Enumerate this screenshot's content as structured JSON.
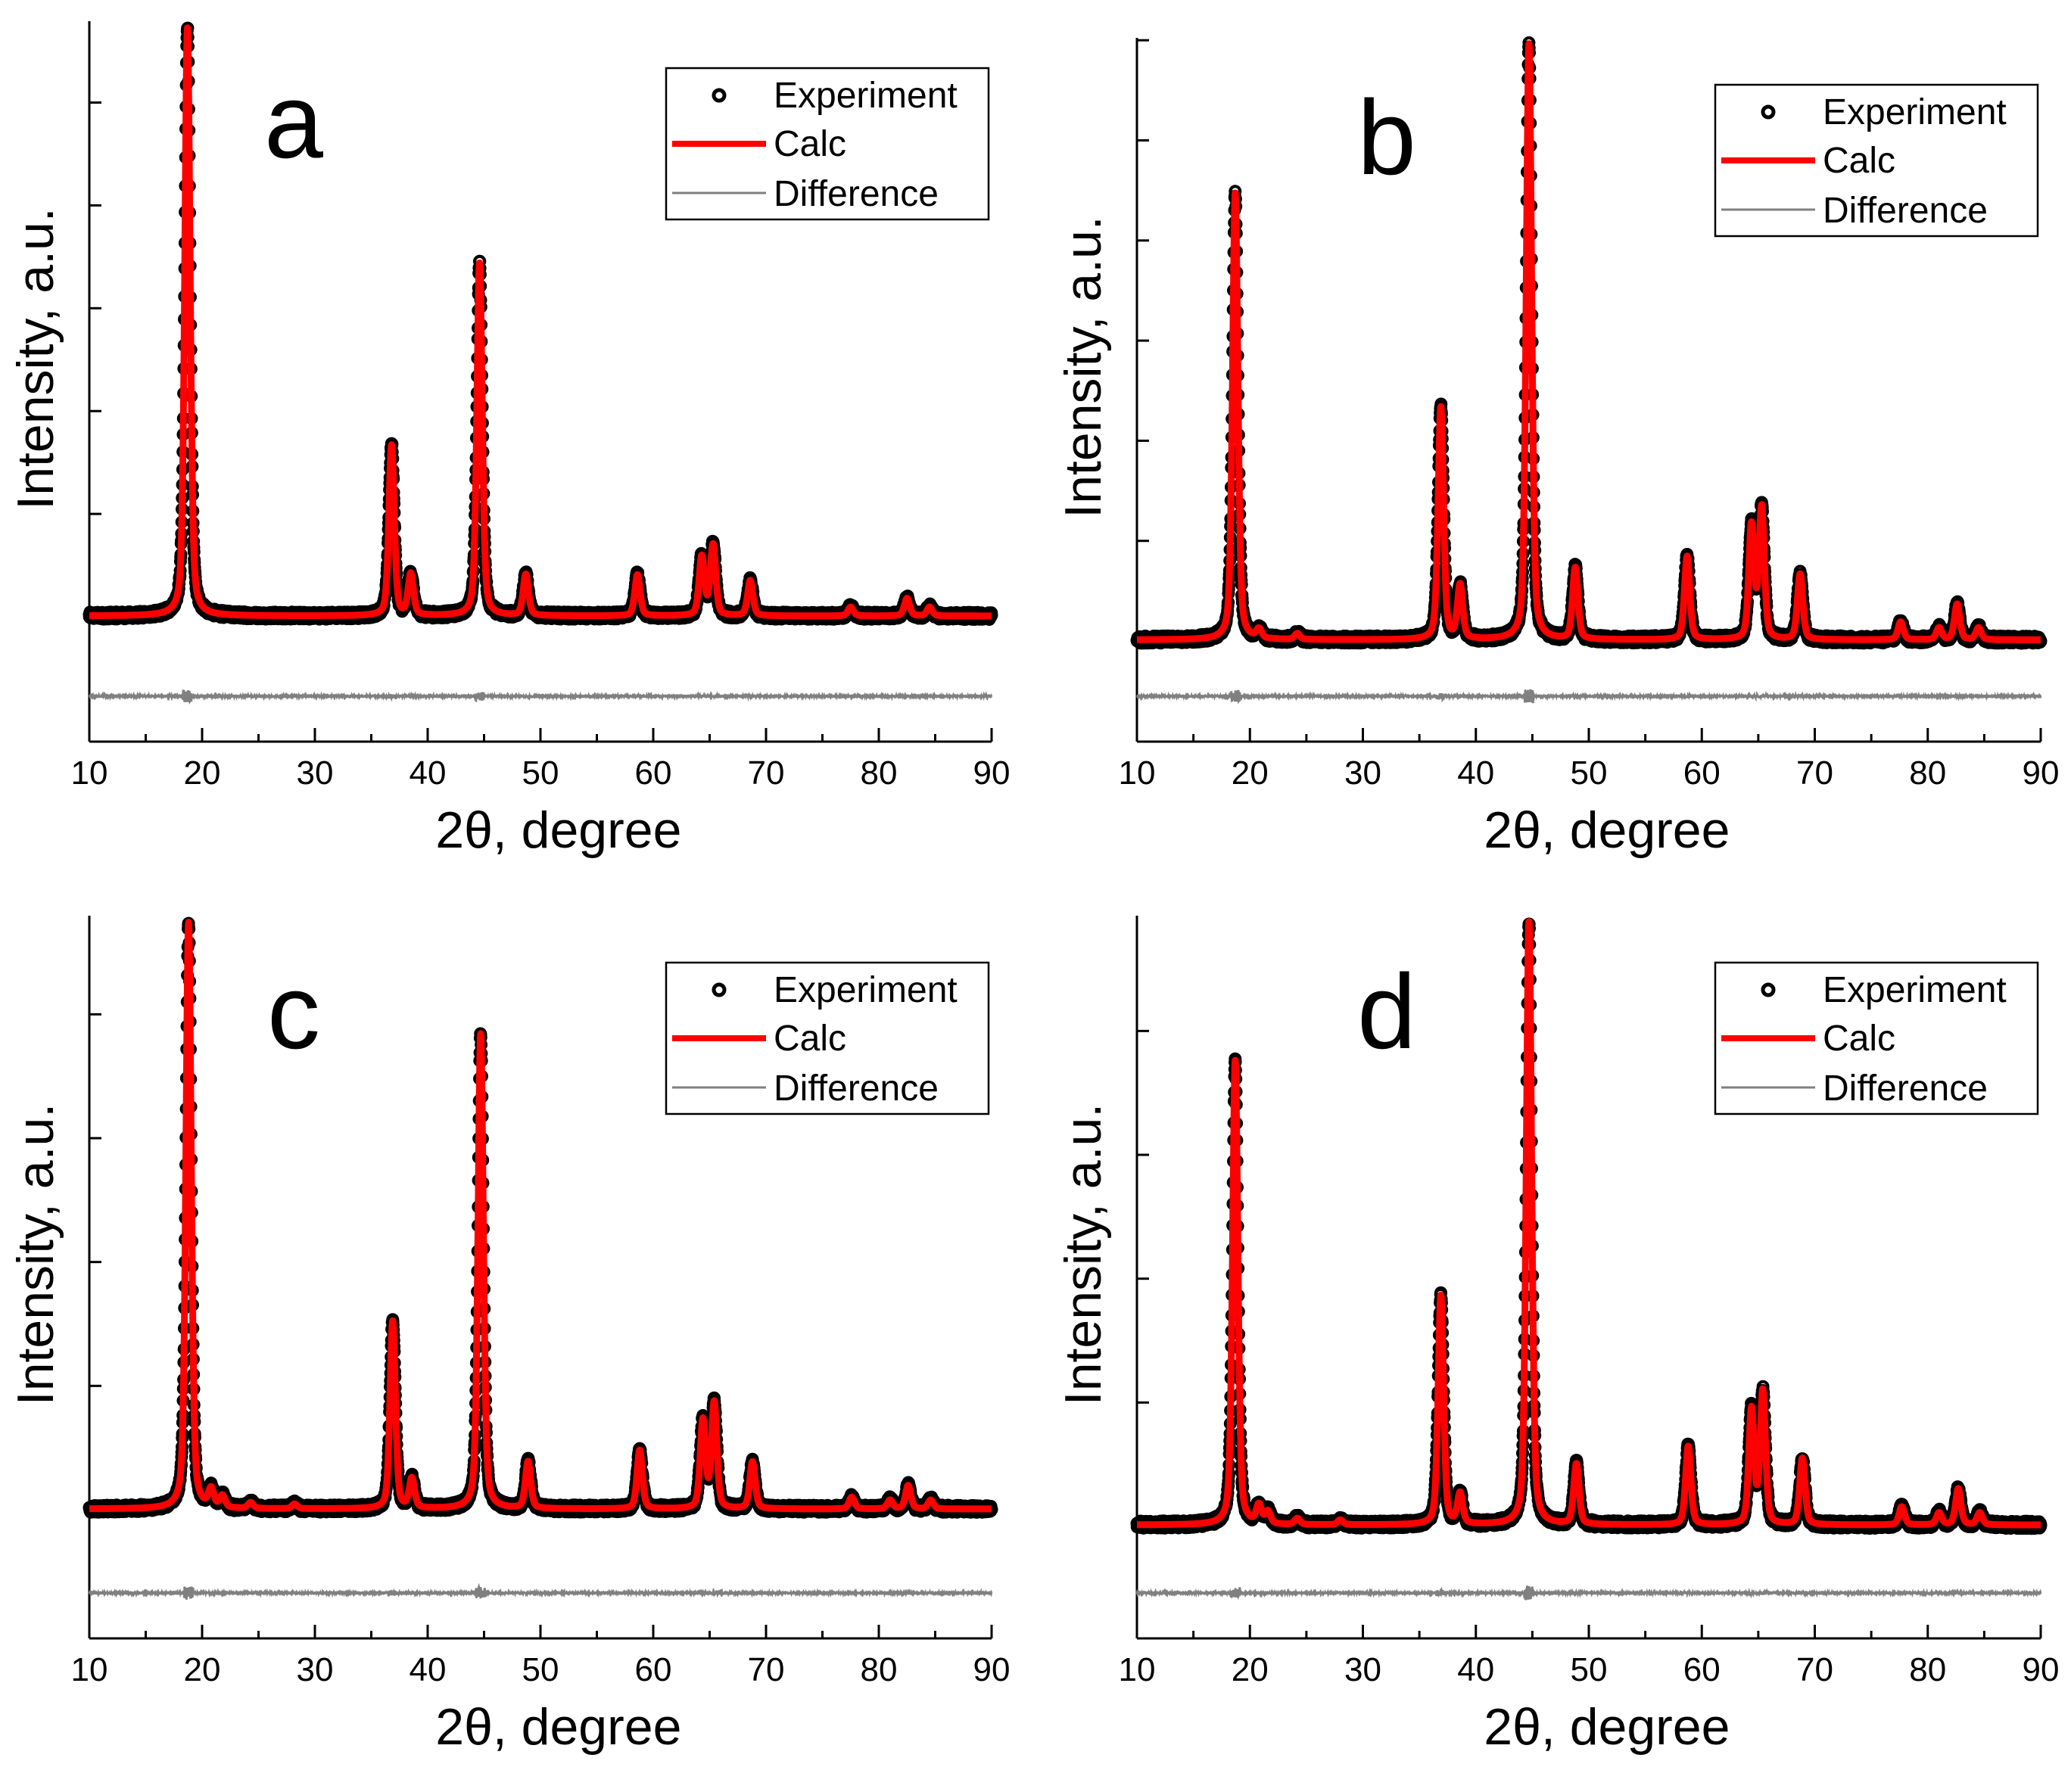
{
  "colors": {
    "experiment": "#000000",
    "calc": "#ff0000",
    "difference": "#808080",
    "axis": "#000000",
    "background": "#ffffff"
  },
  "chart_data": [
    {
      "type": "line",
      "panel": "a",
      "xlabel": "2θ, degree",
      "ylabel": "Intensity, a.u.",
      "xlim": [
        10,
        90
      ],
      "xticks": [
        10,
        20,
        30,
        40,
        50,
        60,
        70,
        80,
        90
      ],
      "y_tick_labels": false,
      "legend": {
        "position": "top-right",
        "entries": [
          "Experiment",
          "Calc",
          "Difference"
        ]
      },
      "series": [
        {
          "name": "Experiment",
          "style": "markers"
        },
        {
          "name": "Calc",
          "style": "line"
        },
        {
          "name": "Difference",
          "style": "line"
        }
      ],
      "baseline": 4,
      "difference_offset": -12,
      "peaks": [
        {
          "x": 18.7,
          "intensity": 100
        },
        {
          "x": 36.8,
          "intensity": 29
        },
        {
          "x": 38.5,
          "intensity": 7
        },
        {
          "x": 44.6,
          "intensity": 60
        },
        {
          "x": 48.7,
          "intensity": 7
        },
        {
          "x": 58.6,
          "intensity": 7
        },
        {
          "x": 64.3,
          "intensity": 10
        },
        {
          "x": 65.3,
          "intensity": 12
        },
        {
          "x": 68.6,
          "intensity": 6
        },
        {
          "x": 77.5,
          "intensity": 1.5
        },
        {
          "x": 82.5,
          "intensity": 3
        },
        {
          "x": 84.5,
          "intensity": 1.5
        }
      ]
    },
    {
      "type": "line",
      "panel": "b",
      "xlabel": "2θ, degree",
      "ylabel": "Intensity, a.u.",
      "xlim": [
        10,
        90
      ],
      "xticks": [
        10,
        20,
        30,
        40,
        50,
        60,
        70,
        80,
        90
      ],
      "y_tick_labels": false,
      "legend": {
        "position": "top-right",
        "entries": [
          "Experiment",
          "Calc",
          "Difference"
        ]
      },
      "series": [
        {
          "name": "Experiment",
          "style": "markers"
        },
        {
          "name": "Calc",
          "style": "line"
        },
        {
          "name": "Difference",
          "style": "line"
        }
      ],
      "baseline": 4,
      "difference_offset": -5,
      "peaks": [
        {
          "x": 18.7,
          "intensity": 75
        },
        {
          "x": 20.8,
          "intensity": 1.5
        },
        {
          "x": 24.2,
          "intensity": 1
        },
        {
          "x": 36.9,
          "intensity": 39
        },
        {
          "x": 38.6,
          "intensity": 9
        },
        {
          "x": 44.7,
          "intensity": 100
        },
        {
          "x": 48.8,
          "intensity": 12
        },
        {
          "x": 58.7,
          "intensity": 14
        },
        {
          "x": 64.4,
          "intensity": 19
        },
        {
          "x": 65.3,
          "intensity": 22
        },
        {
          "x": 68.7,
          "intensity": 11
        },
        {
          "x": 77.6,
          "intensity": 3
        },
        {
          "x": 81.0,
          "intensity": 2
        },
        {
          "x": 82.6,
          "intensity": 6
        },
        {
          "x": 84.5,
          "intensity": 2
        }
      ]
    },
    {
      "type": "line",
      "panel": "c",
      "xlabel": "2θ, degree",
      "ylabel": "Intensity, a.u.",
      "xlim": [
        10,
        90
      ],
      "xticks": [
        10,
        20,
        30,
        40,
        50,
        60,
        70,
        80,
        90
      ],
      "y_tick_labels": false,
      "legend": {
        "position": "top-right",
        "entries": [
          "Experiment",
          "Calc",
          "Difference"
        ]
      },
      "series": [
        {
          "name": "Experiment",
          "style": "markers"
        },
        {
          "name": "Calc",
          "style": "line"
        },
        {
          "name": "Difference",
          "style": "line"
        }
      ],
      "baseline": 4,
      "difference_offset": -6,
      "peaks": [
        {
          "x": 18.8,
          "intensity": 100
        },
        {
          "x": 20.8,
          "intensity": 3
        },
        {
          "x": 21.8,
          "intensity": 2
        },
        {
          "x": 24.3,
          "intensity": 1
        },
        {
          "x": 28.2,
          "intensity": 0.8
        },
        {
          "x": 36.9,
          "intensity": 32
        },
        {
          "x": 38.6,
          "intensity": 5
        },
        {
          "x": 44.7,
          "intensity": 81
        },
        {
          "x": 48.9,
          "intensity": 8
        },
        {
          "x": 58.8,
          "intensity": 10
        },
        {
          "x": 64.4,
          "intensity": 15
        },
        {
          "x": 65.4,
          "intensity": 18
        },
        {
          "x": 68.8,
          "intensity": 8
        },
        {
          "x": 77.6,
          "intensity": 2
        },
        {
          "x": 81.0,
          "intensity": 1.5
        },
        {
          "x": 82.6,
          "intensity": 4
        },
        {
          "x": 84.6,
          "intensity": 1.5
        }
      ]
    },
    {
      "type": "line",
      "panel": "d",
      "xlabel": "2θ, degree",
      "ylabel": "Intensity, a.u.",
      "xlim": [
        10,
        90
      ],
      "xticks": [
        10,
        20,
        30,
        40,
        50,
        60,
        70,
        80,
        90
      ],
      "y_tick_labels": false,
      "legend": {
        "position": "top-right",
        "entries": [
          "Experiment",
          "Calc",
          "Difference"
        ]
      },
      "series": [
        {
          "name": "Experiment",
          "style": "markers"
        },
        {
          "name": "Calc",
          "style": "line"
        },
        {
          "name": "Difference",
          "style": "line"
        }
      ],
      "baseline": 4,
      "difference_offset": -5,
      "peaks": [
        {
          "x": 18.7,
          "intensity": 77
        },
        {
          "x": 20.8,
          "intensity": 3
        },
        {
          "x": 21.6,
          "intensity": 2
        },
        {
          "x": 24.2,
          "intensity": 1
        },
        {
          "x": 28.0,
          "intensity": 0.8
        },
        {
          "x": 36.9,
          "intensity": 38
        },
        {
          "x": 38.6,
          "intensity": 5
        },
        {
          "x": 44.7,
          "intensity": 100
        },
        {
          "x": 48.9,
          "intensity": 10
        },
        {
          "x": 58.8,
          "intensity": 13
        },
        {
          "x": 64.4,
          "intensity": 19
        },
        {
          "x": 65.4,
          "intensity": 22
        },
        {
          "x": 68.9,
          "intensity": 11
        },
        {
          "x": 77.7,
          "intensity": 3
        },
        {
          "x": 81.0,
          "intensity": 2
        },
        {
          "x": 82.7,
          "intensity": 6
        },
        {
          "x": 84.6,
          "intensity": 2
        }
      ]
    }
  ]
}
